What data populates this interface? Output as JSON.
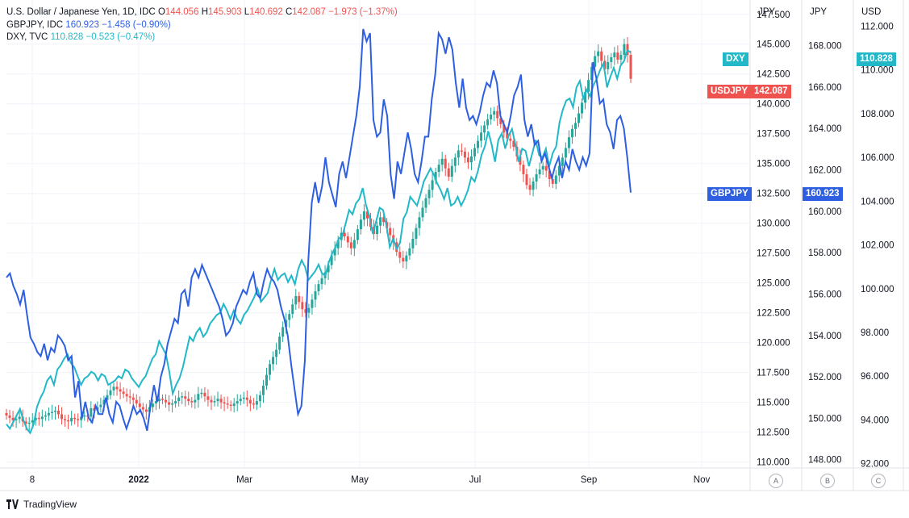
{
  "legend": {
    "usdjpy": {
      "name": "U.S. Dollar / Japanese Yen, 1D, IDC",
      "o_label": "O",
      "o": "144.056",
      "h_label": "H",
      "h": "145.903",
      "l_label": "L",
      "l": "140.692",
      "c_label": "C",
      "c": "142.087",
      "chg": "−1.973 (−1.37%)"
    },
    "gbpjpy": {
      "name": "GBPJPY, IDC",
      "value": "160.923",
      "chg": "−1.458 (−0.90%)"
    },
    "dxy": {
      "name": "DXY, TVC",
      "value": "110.828",
      "chg": "−0.523 (−0.47%)"
    }
  },
  "axes_headers": {
    "a": "JPY",
    "b": "JPY",
    "c": "USD"
  },
  "scale_buttons": {
    "a": "A",
    "b": "B",
    "c": "C"
  },
  "badges": {
    "dxy_label": "DXY",
    "usdjpy_label": "USDJPY",
    "gbpjpy_label": "GBPJPY",
    "dxy_value": "110.828",
    "usdjpy_value": "142.087",
    "gbpjpy_value": "160.923"
  },
  "colors": {
    "dxy": "#22b8c8",
    "gbpjpy": "#2d5fe0",
    "usd_up": "#26a69a",
    "usd_down": "#ef5350",
    "badge_red": "#ef5350",
    "grid": "#f0f3fa"
  },
  "footer": {
    "brand": "TradingView"
  },
  "chart_data": {
    "type": "line",
    "x_ticks": [
      "8",
      "2022",
      "Mar",
      "May",
      "Jul",
      "Sep",
      "Nov"
    ],
    "axis_a": {
      "label": "JPY",
      "ticks": [
        "147.500",
        "145.000",
        "142.500",
        "140.000",
        "137.500",
        "135.000",
        "132.500",
        "130.000",
        "127.500",
        "125.000",
        "122.500",
        "120.000",
        "117.500",
        "115.000",
        "112.500",
        "110.000"
      ],
      "range": [
        109.5,
        148.7
      ]
    },
    "axis_b": {
      "label": "JPY",
      "ticks": [
        "168.000",
        "166.000",
        "164.000",
        "162.000",
        "160.000",
        "158.000",
        "156.000",
        "154.000",
        "152.000",
        "150.000",
        "148.000"
      ],
      "range": [
        147.6,
        170.2
      ]
    },
    "axis_c": {
      "label": "USD",
      "ticks": [
        "112.000",
        "110.000",
        "108.000",
        "106.000",
        "104.000",
        "102.000",
        "100.000",
        "98.000",
        "96.000",
        "94.000",
        "92.000"
      ],
      "range": [
        91.8,
        113.2
      ]
    },
    "series": [
      {
        "name": "USDJPY",
        "axis": "a",
        "style": "candles",
        "values": [
          113.9,
          113.7,
          113.5,
          113.6,
          113.8,
          113.4,
          113.2,
          113.3,
          113.5,
          113.7,
          113.6,
          113.8,
          113.9,
          114.1,
          114.2,
          114.3,
          114.0,
          113.6,
          113.5,
          113.4,
          113.7,
          113.6,
          113.5,
          113.8,
          113.9,
          113.8,
          114.5,
          114.3,
          114.6,
          114.8,
          115.2,
          115.6,
          116.0,
          116.3,
          116.1,
          115.9,
          115.7,
          115.5,
          115.4,
          115.2,
          114.9,
          114.6,
          114.4,
          114.2,
          114.6,
          114.9,
          115.1,
          115.3,
          115.2,
          115.0,
          114.8,
          114.9,
          115.1,
          115.4,
          115.5,
          115.3,
          115.1,
          115.0,
          115.2,
          115.7,
          115.8,
          115.5,
          115.2,
          115.0,
          115.1,
          115.3,
          115.0,
          114.9,
          114.8,
          114.7,
          114.9,
          115.1,
          115.3,
          115.4,
          115.2,
          114.9,
          114.8,
          115.1,
          115.6,
          116.4,
          117.3,
          118.2,
          118.8,
          119.4,
          120.5,
          121.3,
          121.9,
          122.4,
          123.2,
          123.9,
          123.4,
          122.8,
          122.5,
          122.9,
          123.6,
          124.3,
          124.9,
          125.4,
          125.9,
          126.5,
          127.3,
          127.9,
          128.6,
          129.2,
          128.9,
          128.4,
          127.9,
          128.6,
          129.5,
          130.3,
          131.0,
          130.4,
          129.7,
          129.1,
          129.8,
          130.5,
          130.1,
          129.6,
          129.0,
          128.4,
          127.6,
          127.1,
          126.8,
          127.3,
          127.9,
          128.7,
          129.6,
          130.5,
          131.3,
          132.1,
          132.8,
          133.6,
          134.3,
          134.9,
          135.4,
          134.6,
          133.9,
          134.8,
          135.5,
          136.1,
          136.0,
          135.5,
          135.1,
          135.6,
          136.3,
          136.9,
          137.6,
          138.2,
          138.7,
          139.1,
          139.4,
          138.8,
          138.3,
          137.6,
          137.1,
          136.9,
          136.4,
          135.6,
          134.9,
          134.1,
          133.2,
          132.8,
          133.5,
          134.1,
          134.5,
          134.8,
          134.4,
          133.7,
          133.3,
          134.0,
          134.8,
          135.5,
          136.3,
          137.2,
          137.9,
          138.4,
          139.2,
          140.1,
          141.0,
          142.0,
          143.1,
          144.0,
          144.4,
          143.6,
          142.9,
          143.5,
          143.9,
          144.3,
          143.7,
          144.1,
          145.0,
          144.1,
          142.1
        ]
      },
      {
        "name": "GBPJPY",
        "axis": "b",
        "style": "line",
        "values": [
          156.8,
          157.0,
          156.4,
          156.0,
          155.5,
          156.2,
          155.0,
          153.9,
          153.6,
          153.2,
          153.0,
          153.6,
          152.8,
          153.4,
          153.2,
          154.0,
          153.8,
          153.5,
          152.8,
          153.0,
          151.0,
          151.8,
          150.0,
          150.8,
          150.0,
          149.8,
          150.6,
          150.2,
          150.2,
          151.0,
          150.2,
          149.8,
          150.8,
          150.6,
          150.0,
          149.5,
          150.0,
          150.6,
          150.2,
          150.4,
          150.0,
          149.4,
          150.6,
          151.6,
          150.8,
          152.0,
          152.6,
          153.6,
          154.2,
          154.8,
          154.6,
          156.0,
          156.2,
          155.4,
          156.8,
          157.2,
          156.8,
          157.4,
          157.0,
          156.6,
          156.2,
          155.8,
          155.4,
          154.8,
          154.0,
          154.2,
          154.6,
          155.4,
          155.8,
          156.2,
          156.0,
          156.6,
          157.0,
          156.0,
          155.8,
          156.6,
          157.2,
          156.8,
          156.6,
          156.2,
          155.4,
          154.8,
          154.0,
          152.6,
          151.4,
          150.2,
          150.6,
          152.8,
          157.6,
          160.4,
          161.4,
          160.4,
          161.2,
          162.6,
          161.4,
          160.8,
          160.2,
          161.8,
          162.4,
          161.6,
          162.6,
          163.6,
          164.6,
          166.0,
          168.8,
          168.2,
          168.6,
          164.4,
          163.6,
          163.8,
          165.4,
          164.6,
          161.8,
          160.6,
          162.4,
          161.8,
          162.8,
          163.8,
          163.0,
          161.8,
          161.4,
          162.4,
          163.6,
          163.6,
          165.4,
          166.6,
          168.6,
          168.3,
          167.6,
          168.4,
          167.8,
          166.2,
          165.0,
          166.4,
          165.0,
          164.4,
          164.6,
          164.2,
          164.8,
          165.6,
          166.2,
          166.0,
          166.8,
          166.2,
          164.6,
          164.2,
          163.8,
          164.6,
          165.6,
          166.0,
          166.6,
          164.4,
          163.6,
          164.2,
          163.2,
          163.4,
          162.4,
          162.8,
          162.2,
          161.6,
          162.2,
          162.6,
          161.6,
          162.4,
          162.0,
          163.0,
          162.4,
          162.0,
          162.6,
          162.2,
          162.8,
          167.2,
          166.4,
          165.2,
          165.4,
          164.2,
          163.8,
          163.0,
          164.4,
          164.6,
          164.0,
          162.6,
          160.9
        ]
      },
      {
        "name": "DXY",
        "axis": "c",
        "style": "line",
        "values": [
          93.8,
          93.6,
          93.9,
          94.2,
          94.5,
          94.0,
          93.6,
          93.4,
          93.8,
          94.6,
          95.0,
          95.3,
          95.8,
          96.0,
          95.6,
          96.3,
          96.5,
          96.8,
          97.0,
          96.6,
          96.4,
          96.0,
          95.6,
          95.9,
          96.0,
          96.2,
          96.1,
          95.8,
          96.1,
          96.0,
          95.6,
          95.7,
          95.8,
          96.0,
          95.9,
          96.3,
          96.2,
          95.9,
          95.7,
          95.5,
          95.8,
          96.0,
          96.4,
          96.8,
          97.0,
          97.6,
          97.3,
          97.0,
          96.2,
          95.2,
          95.6,
          95.9,
          96.4,
          97.1,
          97.8,
          97.6,
          98.0,
          98.2,
          97.8,
          98.0,
          98.4,
          98.6,
          98.8,
          98.9,
          99.3,
          99.0,
          98.6,
          99.0,
          98.6,
          98.4,
          98.8,
          99.0,
          99.3,
          99.6,
          100.0,
          99.4,
          99.6,
          99.8,
          100.4,
          100.9,
          100.4,
          100.6,
          100.7,
          100.3,
          100.6,
          100.2,
          100.9,
          101.3,
          101.0,
          100.4,
          100.6,
          100.8,
          101.1,
          100.7,
          100.6,
          101.2,
          101.6,
          101.9,
          102.3,
          102.4,
          103.0,
          103.6,
          103.4,
          103.9,
          104.1,
          104.6,
          103.8,
          103.3,
          102.5,
          103.1,
          103.7,
          103.6,
          102.9,
          101.9,
          102.3,
          101.8,
          102.1,
          103.2,
          103.5,
          104.2,
          104.0,
          103.8,
          104.3,
          104.9,
          105.2,
          105.5,
          105.2,
          104.8,
          104.5,
          104.1,
          104.6,
          103.8,
          103.9,
          104.2,
          103.8,
          104.1,
          104.5,
          105.1,
          104.9,
          105.4,
          106.1,
          106.5,
          107.2,
          106.6,
          105.8,
          106.8,
          107.1,
          106.4,
          107.0,
          107.3,
          106.6,
          105.8,
          106.4,
          106.3,
          105.6,
          106.2,
          106.8,
          106.1,
          106.0,
          106.4,
          105.6,
          106.2,
          106.5,
          107.6,
          108.2,
          108.6,
          108.7,
          108.3,
          109.2,
          109.5,
          108.7,
          109.1,
          108.8,
          109.3,
          109.6,
          110.0,
          110.3,
          109.2,
          109.7,
          110.1,
          109.6,
          110.2,
          110.4,
          110.9,
          110.8
        ]
      }
    ]
  }
}
